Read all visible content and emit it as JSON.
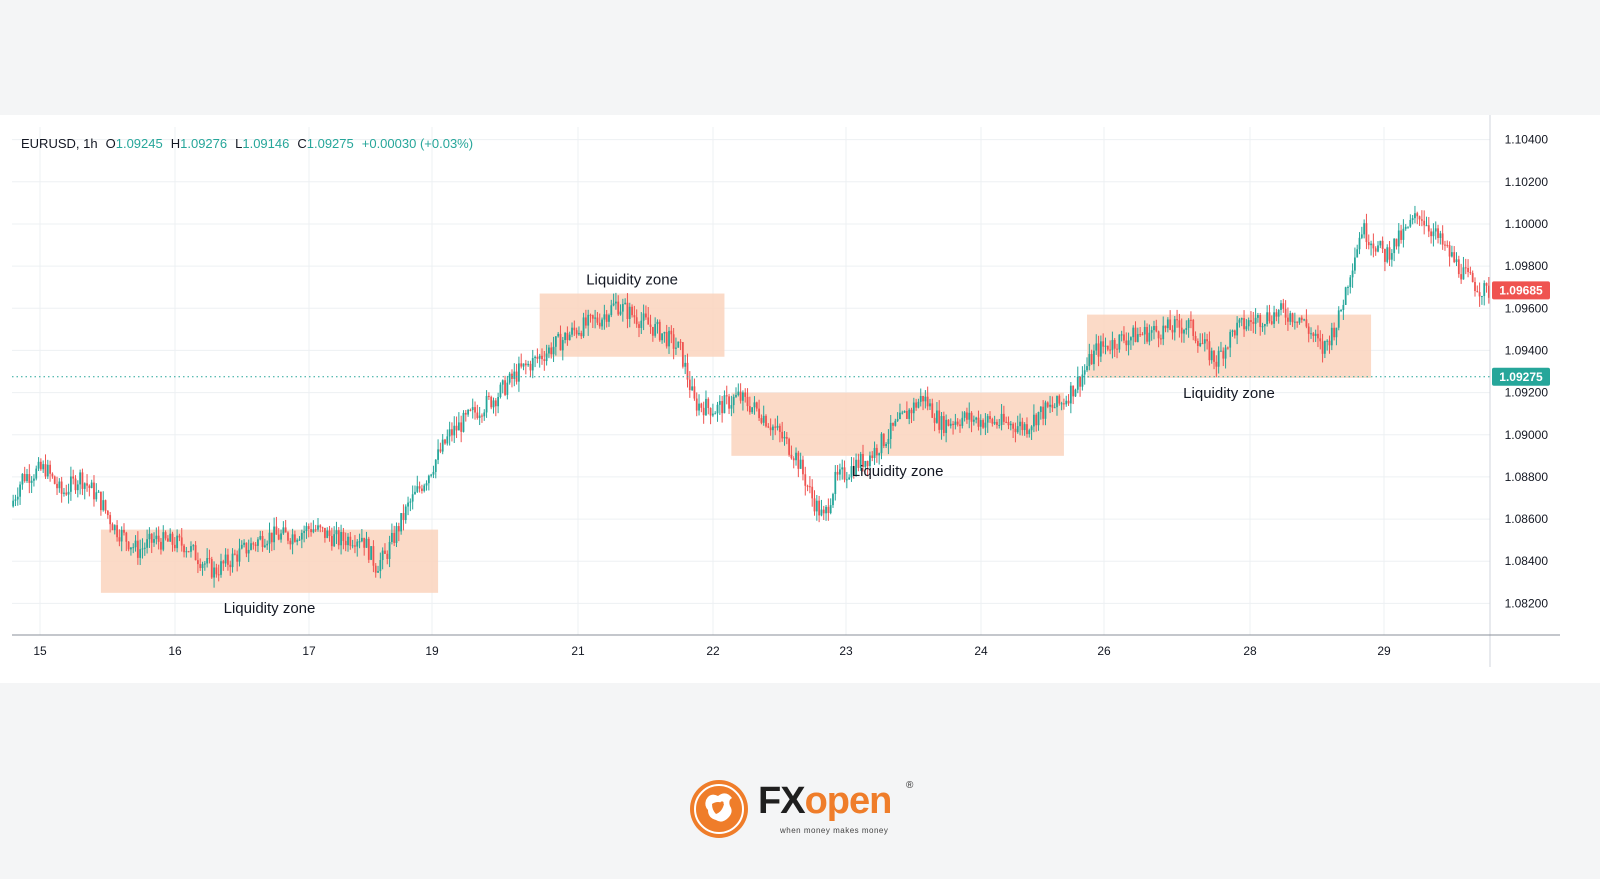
{
  "legend": {
    "symbol": "EURUSD",
    "interval": "1h",
    "open_label": "O",
    "open": "1.09245",
    "high_label": "H",
    "high": "1.09276",
    "low_label": "L",
    "low": "1.09146",
    "close_label": "C",
    "close": "1.09275",
    "change": "+0.00030 (+0.03%)"
  },
  "logo": {
    "brand_fx": "FX",
    "brand_open": "open",
    "tagline": "when money makes money",
    "registered": "®"
  },
  "colors": {
    "up": "#26a69a",
    "down": "#ef5350",
    "zone_fill": "#fad3bd",
    "grid": "#edf0f3",
    "axis_text": "#131722",
    "current_price_bg": "#ef5350",
    "close_price_bg": "#26a69a",
    "brand_orange": "#ef7d2a"
  },
  "chart_data": {
    "type": "candlestick",
    "symbol": "EURUSD",
    "interval": "1h",
    "ylim": [
      1.0805,
      1.1046
    ],
    "y_ticks": [
      "1.08200",
      "1.08400",
      "1.08600",
      "1.08800",
      "1.09000",
      "1.09200",
      "1.09400",
      "1.09600",
      "1.09800",
      "1.10000",
      "1.10200",
      "1.10400"
    ],
    "x_ticks": [
      "15",
      "16",
      "17",
      "19",
      "21",
      "22",
      "23",
      "24",
      "26",
      "28",
      "29"
    ],
    "current_price": {
      "label": "1.09685",
      "value": 1.09685
    },
    "close_price": {
      "label": "1.09275",
      "value": 1.09275
    },
    "price_path": [
      [
        0,
        1.0866
      ],
      [
        5,
        1.088
      ],
      [
        15,
        1.0884
      ],
      [
        22,
        1.0872
      ],
      [
        30,
        1.088
      ],
      [
        38,
        1.087
      ],
      [
        45,
        1.0856
      ],
      [
        55,
        1.0845
      ],
      [
        62,
        1.085
      ],
      [
        75,
        1.0848
      ],
      [
        88,
        1.0835
      ],
      [
        98,
        1.0843
      ],
      [
        110,
        1.0852
      ],
      [
        121,
        1.0852
      ],
      [
        130,
        1.0856
      ],
      [
        142,
        1.085
      ],
      [
        152,
        1.0852
      ],
      [
        158,
        1.0838
      ],
      [
        162,
        1.0842
      ],
      [
        172,
        1.0866
      ],
      [
        180,
        1.088
      ],
      [
        190,
        1.09
      ],
      [
        200,
        1.091
      ],
      [
        210,
        1.0918
      ],
      [
        220,
        1.093
      ],
      [
        228,
        1.0936
      ],
      [
        235,
        1.0942
      ],
      [
        245,
        1.095
      ],
      [
        255,
        1.0955
      ],
      [
        262,
        1.0962
      ],
      [
        272,
        1.0955
      ],
      [
        282,
        1.0948
      ],
      [
        290,
        1.094
      ],
      [
        296,
        1.0915
      ],
      [
        305,
        1.0912
      ],
      [
        315,
        1.0918
      ],
      [
        325,
        1.091
      ],
      [
        333,
        1.09
      ],
      [
        340,
        1.089
      ],
      [
        347,
        1.087
      ],
      [
        352,
        1.086
      ],
      [
        357,
        1.0878
      ],
      [
        365,
        1.0885
      ],
      [
        372,
        1.089
      ],
      [
        380,
        1.09
      ],
      [
        388,
        1.091
      ],
      [
        395,
        1.0918
      ],
      [
        403,
        1.0905
      ],
      [
        412,
        1.0908
      ],
      [
        425,
        1.0906
      ],
      [
        440,
        1.0904
      ],
      [
        445,
        1.091
      ],
      [
        455,
        1.0915
      ],
      [
        462,
        1.0925
      ],
      [
        470,
        1.094
      ],
      [
        480,
        1.0945
      ],
      [
        490,
        1.0948
      ],
      [
        500,
        1.095
      ],
      [
        510,
        1.0952
      ],
      [
        518,
        1.094
      ],
      [
        522,
        1.0935
      ],
      [
        530,
        1.095
      ],
      [
        540,
        1.0955
      ],
      [
        550,
        1.0958
      ],
      [
        558,
        1.0956
      ],
      [
        565,
        1.0945
      ],
      [
        568,
        1.094
      ],
      [
        575,
        1.0955
      ],
      [
        580,
        1.0978
      ],
      [
        585,
        1.0998
      ],
      [
        595,
        1.0985
      ],
      [
        603,
        1.0995
      ],
      [
        610,
        1.1005
      ],
      [
        620,
        1.099
      ],
      [
        630,
        1.0975
      ],
      [
        638,
        1.0968
      ]
    ],
    "zones": [
      {
        "label": "Liquidity zone",
        "x0": 38,
        "x1": 184,
        "y0": 1.0825,
        "y1": 1.0855,
        "label_pos": "below"
      },
      {
        "label": "Liquidity zone",
        "x0": 228,
        "x1": 308,
        "y0": 1.0937,
        "y1": 1.0967,
        "label_pos": "above"
      },
      {
        "label": "Liquidity zone",
        "x0": 311,
        "x1": 455,
        "y0": 1.089,
        "y1": 1.092,
        "label_pos": "below"
      },
      {
        "label": "Liquidity zone",
        "x0": 465,
        "x1": 588,
        "y0": 1.0927,
        "y1": 1.0957,
        "label_pos": "below"
      }
    ],
    "xlabel": "",
    "ylabel": "",
    "grid": true
  }
}
